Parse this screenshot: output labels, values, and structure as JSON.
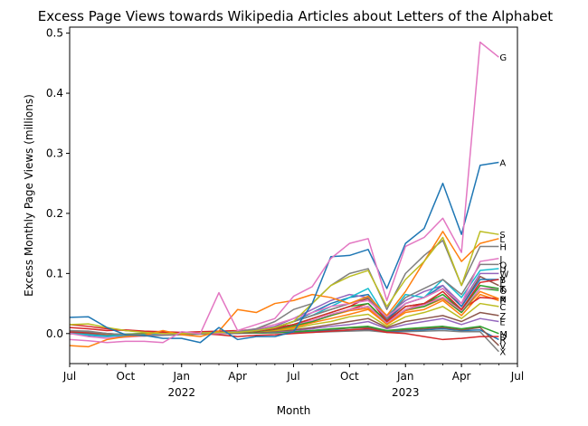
{
  "chart_data": {
    "type": "line",
    "title": "Excess Page Views towards Wikipedia Articles about Letters of the Alphabet",
    "xlabel": "Month",
    "ylabel": "Excess Monthly Page Views (millions)",
    "ylim": [
      -0.05,
      0.51
    ],
    "yticks": [
      0.0,
      0.1,
      0.2,
      0.3,
      0.4,
      0.5
    ],
    "ytick_labels": [
      "0.0",
      "0.1",
      "0.2",
      "0.3",
      "0.4",
      "0.5"
    ],
    "xlim": [
      "2021-07",
      "2023-07"
    ],
    "xticks": [
      {
        "month": "2021-07",
        "label": "Jul",
        "sub": ""
      },
      {
        "month": "2021-10",
        "label": "Oct",
        "sub": ""
      },
      {
        "month": "2022-01",
        "label": "Jan",
        "sub": "2022"
      },
      {
        "month": "2022-04",
        "label": "Apr",
        "sub": ""
      },
      {
        "month": "2022-07",
        "label": "Jul",
        "sub": ""
      },
      {
        "month": "2022-10",
        "label": "Oct",
        "sub": ""
      },
      {
        "month": "2023-01",
        "label": "Jan",
        "sub": "2023"
      },
      {
        "month": "2023-04",
        "label": "Apr",
        "sub": ""
      },
      {
        "month": "2023-07",
        "label": "Jul",
        "sub": ""
      }
    ],
    "grid": false,
    "legend": "none",
    "x": [
      "2021-07",
      "2021-08",
      "2021-09",
      "2021-10",
      "2021-11",
      "2021-12",
      "2022-01",
      "2022-02",
      "2022-03",
      "2022-04",
      "2022-05",
      "2022-06",
      "2022-07",
      "2022-08",
      "2022-09",
      "2022-10",
      "2022-11",
      "2022-12",
      "2023-01",
      "2023-02",
      "2023-03",
      "2023-04",
      "2023-05",
      "2023-06"
    ],
    "series": [
      {
        "name": "G",
        "color": "#e377c2",
        "values": [
          -0.01,
          -0.012,
          -0.015,
          -0.013,
          -0.013,
          -0.015,
          0.003,
          0.0,
          0.068,
          0.005,
          0.015,
          0.025,
          0.062,
          0.078,
          0.125,
          0.15,
          0.158,
          0.055,
          0.145,
          0.16,
          0.192,
          0.135,
          0.485,
          0.46
        ]
      },
      {
        "name": "A",
        "color": "#1f77b4",
        "values": [
          0.027,
          0.028,
          0.01,
          -0.002,
          -0.003,
          -0.008,
          -0.008,
          -0.015,
          0.01,
          -0.01,
          -0.005,
          -0.005,
          0.003,
          0.05,
          0.128,
          0.13,
          0.14,
          0.075,
          0.15,
          0.175,
          0.25,
          0.165,
          0.28,
          0.285
        ]
      },
      {
        "name": "S",
        "color": "#bcbd22",
        "values": [
          0.015,
          0.016,
          0.01,
          0.005,
          0.002,
          0.0,
          0.0,
          0.001,
          0.002,
          0.002,
          0.005,
          0.01,
          0.02,
          0.05,
          0.08,
          0.095,
          0.105,
          0.045,
          0.09,
          0.12,
          0.16,
          0.08,
          0.17,
          0.165
        ]
      },
      {
        "name": "L",
        "color": "#ff7f0e",
        "values": [
          -0.02,
          -0.022,
          -0.01,
          -0.005,
          -0.003,
          0.005,
          -0.002,
          -0.005,
          0.004,
          0.04,
          0.035,
          0.05,
          0.055,
          0.065,
          0.06,
          0.05,
          0.062,
          0.03,
          0.07,
          0.12,
          0.17,
          0.12,
          0.15,
          0.158
        ]
      },
      {
        "name": "H",
        "color": "#7f7f7f",
        "values": [
          0.005,
          0.003,
          0.0,
          -0.002,
          -0.004,
          -0.003,
          -0.002,
          -0.001,
          0.002,
          0.003,
          0.008,
          0.02,
          0.04,
          0.05,
          0.08,
          0.1,
          0.108,
          0.04,
          0.1,
          0.13,
          0.155,
          0.08,
          0.145,
          0.145
        ]
      },
      {
        "name": "J",
        "color": "#e377c2",
        "values": [
          0.0,
          -0.005,
          -0.008,
          -0.006,
          -0.004,
          -0.002,
          0.0,
          0.001,
          0.0,
          0.004,
          0.008,
          0.015,
          0.025,
          0.035,
          0.045,
          0.05,
          0.055,
          0.028,
          0.05,
          0.06,
          0.075,
          0.05,
          0.12,
          0.125
        ]
      },
      {
        "name": "Q",
        "color": "#7f7f7f",
        "values": [
          0.005,
          0.004,
          0.0,
          -0.002,
          -0.003,
          -0.002,
          0.0,
          0.0,
          0.001,
          0.002,
          0.005,
          0.01,
          0.02,
          0.03,
          0.04,
          0.05,
          0.06,
          0.025,
          0.06,
          0.075,
          0.09,
          0.065,
          0.115,
          0.115
        ]
      },
      {
        "name": "U",
        "color": "#17becf",
        "values": [
          0.0,
          -0.002,
          -0.004,
          -0.003,
          -0.002,
          -0.001,
          0.0,
          0.0,
          0.001,
          0.002,
          0.005,
          0.01,
          0.02,
          0.03,
          0.045,
          0.06,
          0.075,
          0.025,
          0.065,
          0.06,
          0.09,
          0.06,
          0.105,
          0.108
        ]
      },
      {
        "name": "W",
        "color": "#9467bd",
        "values": [
          0.0,
          -0.002,
          -0.004,
          -0.005,
          -0.003,
          -0.002,
          0.0,
          0.001,
          0.002,
          0.003,
          0.006,
          0.012,
          0.025,
          0.04,
          0.055,
          0.065,
          0.06,
          0.03,
          0.055,
          0.07,
          0.08,
          0.05,
          0.1,
          0.1
        ]
      },
      {
        "name": "Y",
        "color": "#d62728",
        "values": [
          0.003,
          0.002,
          0.0,
          -0.002,
          -0.003,
          -0.002,
          0.0,
          0.0,
          0.001,
          0.002,
          0.004,
          0.008,
          0.015,
          0.025,
          0.035,
          0.045,
          0.06,
          0.02,
          0.045,
          0.05,
          0.07,
          0.04,
          0.085,
          0.09
        ]
      },
      {
        "name": "B",
        "color": "#1f77b4",
        "values": [
          0.0,
          -0.003,
          -0.005,
          -0.004,
          -0.003,
          -0.002,
          0.0,
          0.0,
          0.001,
          0.002,
          0.004,
          0.01,
          0.02,
          0.035,
          0.05,
          0.06,
          0.065,
          0.025,
          0.05,
          0.06,
          0.08,
          0.045,
          0.09,
          0.09
        ]
      },
      {
        "name": "I",
        "color": "#8c564b",
        "values": [
          0.002,
          0.0,
          -0.003,
          -0.004,
          -0.003,
          -0.002,
          0.0,
          0.001,
          0.002,
          0.003,
          0.005,
          0.01,
          0.02,
          0.03,
          0.04,
          0.05,
          0.058,
          0.022,
          0.05,
          0.06,
          0.075,
          0.045,
          0.095,
          0.08
        ]
      },
      {
        "name": "K",
        "color": "#2ca02c",
        "values": [
          0.0,
          -0.002,
          -0.004,
          -0.003,
          -0.002,
          -0.001,
          0.0,
          0.0,
          0.001,
          0.002,
          0.004,
          0.008,
          0.015,
          0.025,
          0.035,
          0.045,
          0.05,
          0.02,
          0.045,
          0.05,
          0.065,
          0.04,
          0.08,
          0.075
        ]
      },
      {
        "name": "T",
        "color": "#e377c2",
        "values": [
          0.0,
          -0.002,
          -0.004,
          -0.003,
          -0.002,
          -0.001,
          0.0,
          0.0,
          0.001,
          0.002,
          0.004,
          0.008,
          0.015,
          0.022,
          0.032,
          0.04,
          0.045,
          0.018,
          0.04,
          0.048,
          0.06,
          0.038,
          0.075,
          0.075
        ]
      },
      {
        "name": "O",
        "color": "#2ca02c",
        "values": [
          0.0,
          -0.002,
          -0.003,
          -0.003,
          -0.002,
          -0.001,
          0.0,
          0.0,
          0.001,
          0.002,
          0.003,
          0.007,
          0.013,
          0.02,
          0.03,
          0.04,
          0.045,
          0.018,
          0.04,
          0.045,
          0.06,
          0.035,
          0.075,
          0.072
        ]
      },
      {
        "name": "P",
        "color": "#ff7f0e",
        "values": [
          0.002,
          0.0,
          -0.002,
          -0.003,
          -0.002,
          -0.001,
          0.0,
          0.0,
          0.001,
          0.002,
          0.003,
          0.006,
          0.012,
          0.02,
          0.03,
          0.038,
          0.042,
          0.016,
          0.038,
          0.045,
          0.058,
          0.035,
          0.07,
          0.058
        ]
      },
      {
        "name": "N",
        "color": "#d62728",
        "values": [
          0.01,
          0.008,
          0.005,
          0.006,
          0.004,
          0.003,
          0.002,
          0.003,
          0.004,
          0.005,
          0.007,
          0.01,
          0.015,
          0.02,
          0.03,
          0.04,
          0.05,
          0.018,
          0.04,
          0.05,
          0.06,
          0.04,
          0.06,
          0.058
        ]
      },
      {
        "name": "F",
        "color": "#ff7f0e",
        "values": [
          0.0,
          -0.002,
          -0.003,
          -0.002,
          -0.001,
          0.0,
          0.0,
          0.0,
          0.001,
          0.002,
          0.003,
          0.006,
          0.01,
          0.018,
          0.025,
          0.032,
          0.04,
          0.015,
          0.035,
          0.04,
          0.055,
          0.03,
          0.065,
          0.055
        ]
      },
      {
        "name": "C",
        "color": "#bcbd22",
        "values": [
          0.0,
          -0.001,
          -0.002,
          -0.002,
          -0.001,
          0.0,
          0.0,
          0.0,
          0.001,
          0.002,
          0.003,
          0.005,
          0.008,
          0.015,
          0.02,
          0.028,
          0.032,
          0.012,
          0.028,
          0.035,
          0.045,
          0.025,
          0.05,
          0.045
        ]
      },
      {
        "name": "Z",
        "color": "#8c564b",
        "values": [
          0.0,
          -0.002,
          -0.003,
          -0.002,
          -0.001,
          0.0,
          0.0,
          0.0,
          0.001,
          0.001,
          0.002,
          0.004,
          0.006,
          0.01,
          0.015,
          0.02,
          0.025,
          0.01,
          0.02,
          0.025,
          0.03,
          0.02,
          0.035,
          0.03
        ]
      },
      {
        "name": "E",
        "color": "#9467bd",
        "values": [
          0.0,
          -0.001,
          -0.002,
          -0.002,
          -0.001,
          0.0,
          0.0,
          0.0,
          0.0,
          0.001,
          0.002,
          0.003,
          0.005,
          0.008,
          0.012,
          0.015,
          0.02,
          0.008,
          0.015,
          0.02,
          0.025,
          0.015,
          0.025,
          0.02
        ]
      },
      {
        "name": "M",
        "color": "#2ca02c",
        "values": [
          0.0,
          0.0,
          -0.001,
          -0.001,
          0.0,
          0.0,
          0.0,
          0.0,
          0.0,
          0.001,
          0.001,
          0.002,
          0.003,
          0.005,
          0.008,
          0.01,
          0.012,
          0.005,
          0.008,
          0.01,
          0.012,
          0.008,
          0.012,
          0.0
        ]
      },
      {
        "name": "V",
        "color": "#8c564b",
        "values": [
          0.0,
          0.0,
          -0.001,
          -0.002,
          -0.001,
          0.0,
          0.0,
          0.0,
          0.0,
          0.001,
          0.001,
          0.002,
          0.003,
          0.005,
          0.007,
          0.009,
          0.01,
          0.004,
          0.006,
          0.008,
          0.01,
          0.006,
          0.01,
          -0.02
        ]
      },
      {
        "name": "D",
        "color": "#d62728",
        "values": [
          0.015,
          0.012,
          0.008,
          0.005,
          0.003,
          0.002,
          0.001,
          0.0,
          -0.002,
          -0.005,
          -0.003,
          -0.002,
          0.0,
          0.002,
          0.004,
          0.006,
          0.008,
          0.002,
          0.0,
          -0.005,
          -0.01,
          -0.008,
          -0.005,
          -0.005
        ]
      },
      {
        "name": "R",
        "color": "#1f77b4",
        "values": [
          0.0,
          -0.001,
          -0.002,
          -0.002,
          -0.001,
          0.0,
          0.0,
          0.0,
          0.0,
          0.001,
          0.001,
          0.002,
          0.003,
          0.004,
          0.005,
          0.006,
          0.007,
          0.003,
          0.005,
          0.006,
          0.008,
          0.005,
          0.006,
          -0.01
        ]
      },
      {
        "name": "X",
        "color": "#7f7f7f",
        "values": [
          0.0,
          0.0,
          -0.001,
          -0.001,
          0.0,
          0.0,
          0.0,
          0.0,
          0.0,
          0.0,
          0.001,
          0.001,
          0.002,
          0.002,
          0.003,
          0.004,
          0.005,
          0.002,
          0.003,
          0.004,
          0.005,
          0.003,
          0.003,
          -0.03
        ]
      }
    ]
  }
}
